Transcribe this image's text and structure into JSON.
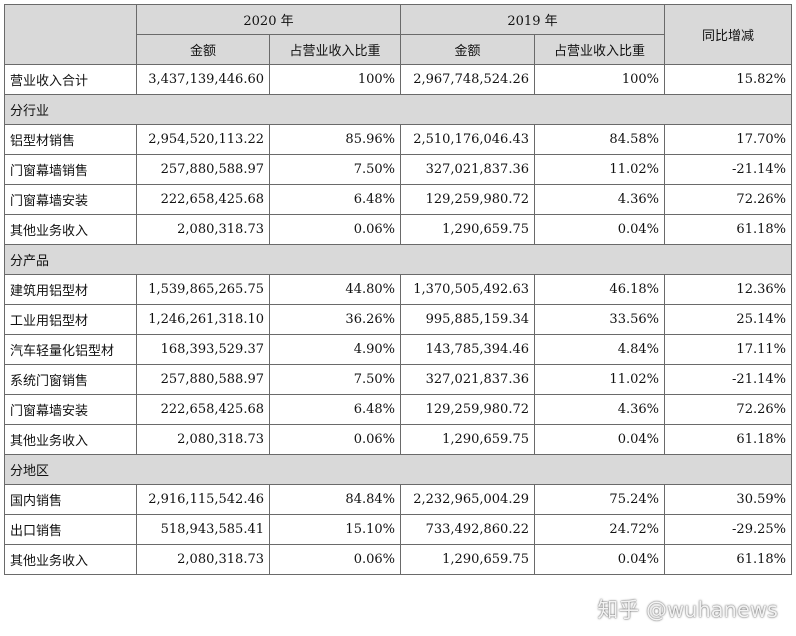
{
  "header": {
    "year_2020": "2020 年",
    "year_2019": "2019 年",
    "yoy": "同比增减",
    "amount": "金额",
    "share": "占营业收入比重"
  },
  "total": {
    "label": "营业收入合计",
    "amt2020": "3,437,139,446.60",
    "pct2020": "100%",
    "amt2019": "2,967,748,524.26",
    "pct2019": "100%",
    "yoy": "15.82%"
  },
  "sections": [
    {
      "title": "分行业",
      "rows": [
        {
          "label": "铝型材销售",
          "amt2020": "2,954,520,113.22",
          "pct2020": "85.96%",
          "amt2019": "2,510,176,046.43",
          "pct2019": "84.58%",
          "yoy": "17.70%"
        },
        {
          "label": "门窗幕墙销售",
          "amt2020": "257,880,588.97",
          "pct2020": "7.50%",
          "amt2019": "327,021,837.36",
          "pct2019": "11.02%",
          "yoy": "-21.14%"
        },
        {
          "label": "门窗幕墙安装",
          "amt2020": "222,658,425.68",
          "pct2020": "6.48%",
          "amt2019": "129,259,980.72",
          "pct2019": "4.36%",
          "yoy": "72.26%"
        },
        {
          "label": "其他业务收入",
          "amt2020": "2,080,318.73",
          "pct2020": "0.06%",
          "amt2019": "1,290,659.75",
          "pct2019": "0.04%",
          "yoy": "61.18%"
        }
      ]
    },
    {
      "title": "分产品",
      "rows": [
        {
          "label": "建筑用铝型材",
          "amt2020": "1,539,865,265.75",
          "pct2020": "44.80%",
          "amt2019": "1,370,505,492.63",
          "pct2019": "46.18%",
          "yoy": "12.36%"
        },
        {
          "label": "工业用铝型材",
          "amt2020": "1,246,261,318.10",
          "pct2020": "36.26%",
          "amt2019": "995,885,159.34",
          "pct2019": "33.56%",
          "yoy": "25.14%"
        },
        {
          "label": "汽车轻量化铝型材",
          "amt2020": "168,393,529.37",
          "pct2020": "4.90%",
          "amt2019": "143,785,394.46",
          "pct2019": "4.84%",
          "yoy": "17.11%"
        },
        {
          "label": "系统门窗销售",
          "amt2020": "257,880,588.97",
          "pct2020": "7.50%",
          "amt2019": "327,021,837.36",
          "pct2019": "11.02%",
          "yoy": "-21.14%"
        },
        {
          "label": "门窗幕墙安装",
          "amt2020": "222,658,425.68",
          "pct2020": "6.48%",
          "amt2019": "129,259,980.72",
          "pct2019": "4.36%",
          "yoy": "72.26%"
        },
        {
          "label": "其他业务收入",
          "amt2020": "2,080,318.73",
          "pct2020": "0.06%",
          "amt2019": "1,290,659.75",
          "pct2019": "0.04%",
          "yoy": "61.18%"
        }
      ]
    },
    {
      "title": "分地区",
      "rows": [
        {
          "label": "国内销售",
          "amt2020": "2,916,115,542.46",
          "pct2020": "84.84%",
          "amt2019": "2,232,965,004.29",
          "pct2019": "75.24%",
          "yoy": "30.59%"
        },
        {
          "label": "出口销售",
          "amt2020": "518,943,585.41",
          "pct2020": "15.10%",
          "amt2019": "733,492,860.22",
          "pct2019": "24.72%",
          "yoy": "-29.25%"
        },
        {
          "label": "其他业务收入",
          "amt2020": "2,080,318.73",
          "pct2020": "0.06%",
          "amt2019": "1,290,659.75",
          "pct2019": "0.04%",
          "yoy": "61.18%"
        }
      ]
    }
  ],
  "watermark": "知乎 @wuhanews"
}
